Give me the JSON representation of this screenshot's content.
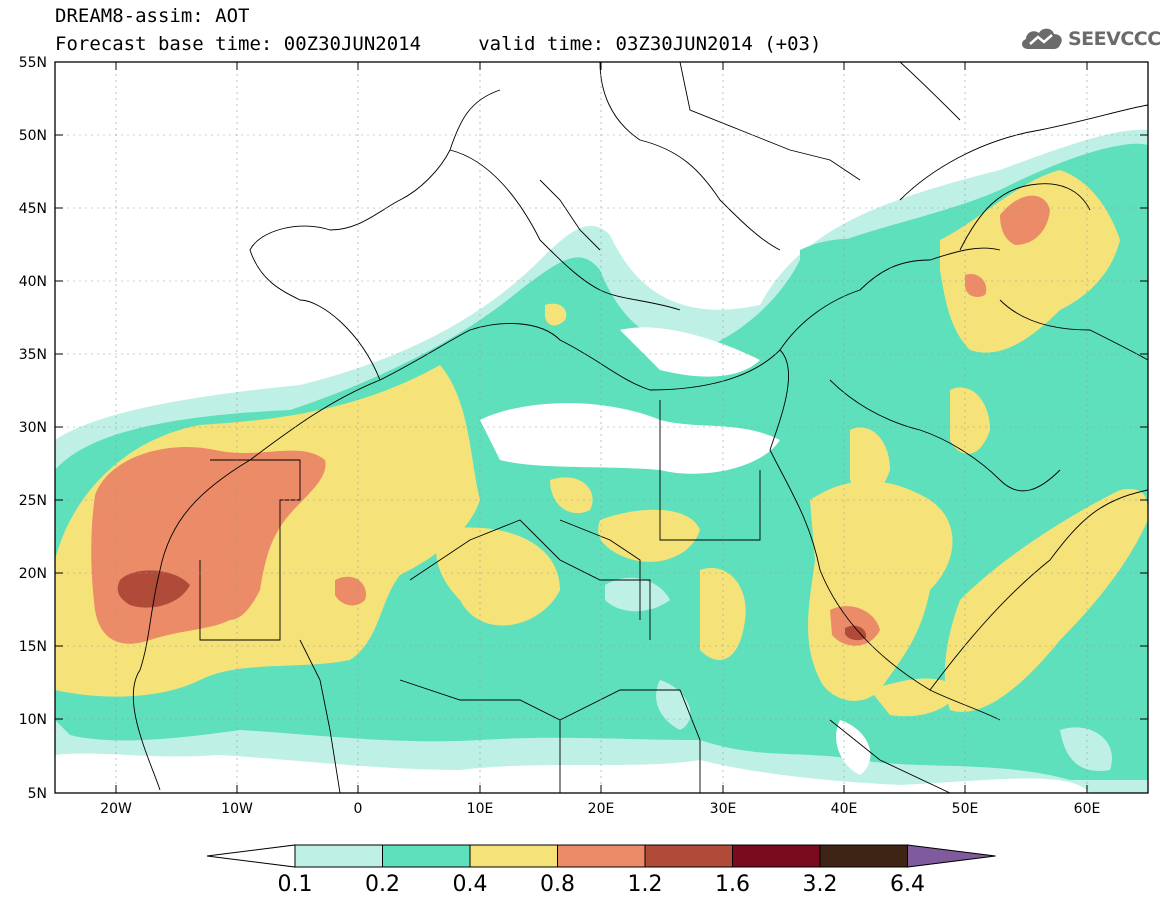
{
  "header": {
    "title_line1": "DREAM8-assim: AOT",
    "title_line2": "Forecast base time: 00Z30JUN2014     valid time: 03Z30JUN2014 (+03)",
    "logo_text": "SEEVCCC"
  },
  "map": {
    "lat_labels": [
      "55N",
      "50N",
      "45N",
      "40N",
      "35N",
      "30N",
      "25N",
      "20N",
      "15N",
      "10N",
      "5N"
    ],
    "lon_labels": [
      "20W",
      "10W",
      "0",
      "10E",
      "20E",
      "30E",
      "40E",
      "50E",
      "60E"
    ],
    "extent": {
      "lon_min": -25,
      "lon_max": 65,
      "lat_min": 5,
      "lat_max": 55
    }
  },
  "legend": {
    "levels": [
      "0.1",
      "0.2",
      "0.4",
      "0.8",
      "1.2",
      "1.6",
      "3.2",
      "6.4"
    ],
    "colors": [
      "#ffffff",
      "#bff0e6",
      "#5ee0bc",
      "#f5e37a",
      "#ec8b68",
      "#b04b3a",
      "#7a0a1e",
      "#3d2414",
      "#7f5a9c"
    ]
  }
}
